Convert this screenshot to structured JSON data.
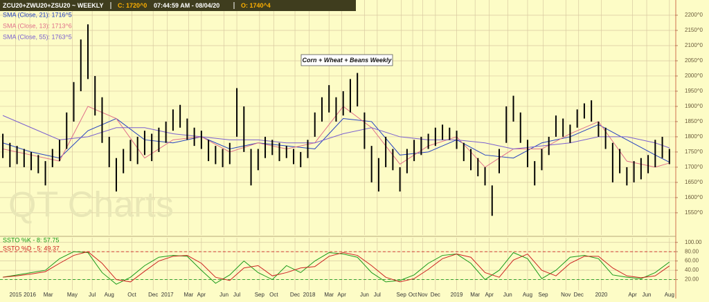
{
  "header": {
    "symbol": "ZCU20+ZWU20+ZSU20 ~ WEEKLY",
    "close": "C: 1720^0",
    "time": "07:44:59 AM - 08/04/20",
    "open": "O: 1740^4"
  },
  "chart_data": [
    {
      "type": "ohlc",
      "annotation": "Corn + Wheat + Beans Weekly",
      "watermark": "QT Charts",
      "grid": true,
      "bar_color": "#000000",
      "xlim": [
        2015.79,
        2020.55
      ],
      "ylim": [
        1477,
        2250
      ],
      "yticks": [
        {
          "value": 1550,
          "label": "1550^0"
        },
        {
          "value": 1600,
          "label": "1600^0"
        },
        {
          "value": 1650,
          "label": "1650^0"
        },
        {
          "value": 1700,
          "label": "1700^0"
        },
        {
          "value": 1750,
          "label": "1750^0"
        },
        {
          "value": 1800,
          "label": "1800^0"
        },
        {
          "value": 1850,
          "label": "1850^0"
        },
        {
          "value": 1900,
          "label": "1900^0"
        },
        {
          "value": 1950,
          "label": "1950^0"
        },
        {
          "value": 2000,
          "label": "2000^0"
        },
        {
          "value": 2050,
          "label": "2050^0"
        },
        {
          "value": 2100,
          "label": "2100^0"
        },
        {
          "value": 2150,
          "label": "2150^0"
        },
        {
          "value": 2200,
          "label": "2200^0"
        }
      ],
      "xticks": [
        {
          "value": 2015.9,
          "label": "2015"
        },
        {
          "value": 2016.0,
          "label": "2016"
        },
        {
          "value": 2016.13,
          "label": "Mar"
        },
        {
          "value": 2016.3,
          "label": "May"
        },
        {
          "value": 2016.44,
          "label": "Jul"
        },
        {
          "value": 2016.56,
          "label": "Aug"
        },
        {
          "value": 2016.72,
          "label": "Oct"
        },
        {
          "value": 2016.87,
          "label": "Dec"
        },
        {
          "value": 2016.97,
          "label": "2017"
        },
        {
          "value": 2017.12,
          "label": "Mar"
        },
        {
          "value": 2017.21,
          "label": "Apr"
        },
        {
          "value": 2017.37,
          "label": "Jun"
        },
        {
          "value": 2017.46,
          "label": "Jul"
        },
        {
          "value": 2017.62,
          "label": "Sep"
        },
        {
          "value": 2017.72,
          "label": "Oct"
        },
        {
          "value": 2017.87,
          "label": "Dec"
        },
        {
          "value": 2017.97,
          "label": "2018"
        },
        {
          "value": 2018.11,
          "label": "Mar"
        },
        {
          "value": 2018.2,
          "label": "Apr"
        },
        {
          "value": 2018.36,
          "label": "Jun"
        },
        {
          "value": 2018.45,
          "label": "Jul"
        },
        {
          "value": 2018.62,
          "label": "Sep"
        },
        {
          "value": 2018.7,
          "label": "Oct"
        },
        {
          "value": 2018.77,
          "label": "Nov"
        },
        {
          "value": 2018.86,
          "label": "Dec"
        },
        {
          "value": 2019.01,
          "label": "2019"
        },
        {
          "value": 2019.14,
          "label": "Mar"
        },
        {
          "value": 2019.24,
          "label": "Apr"
        },
        {
          "value": 2019.37,
          "label": "Jun"
        },
        {
          "value": 2019.51,
          "label": "Aug"
        },
        {
          "value": 2019.62,
          "label": "Sep"
        },
        {
          "value": 2019.78,
          "label": "Nov"
        },
        {
          "value": 2019.87,
          "label": "Dec"
        },
        {
          "value": 2020.03,
          "label": "2020"
        },
        {
          "value": 2020.25,
          "label": "Apr"
        },
        {
          "value": 2020.35,
          "label": "Jun"
        },
        {
          "value": 2020.51,
          "label": "Aug"
        }
      ],
      "bars": {
        "x": [
          2015.81,
          2015.86,
          2015.91,
          2015.96,
          2016.01,
          2016.06,
          2016.11,
          2016.16,
          2016.21,
          2016.26,
          2016.31,
          2016.36,
          2016.41,
          2016.46,
          2016.51,
          2016.56,
          2016.61,
          2016.66,
          2016.71,
          2016.76,
          2016.81,
          2016.86,
          2016.91,
          2016.96,
          2017.01,
          2017.06,
          2017.11,
          2017.16,
          2017.21,
          2017.26,
          2017.31,
          2017.36,
          2017.41,
          2017.46,
          2017.51,
          2017.56,
          2017.61,
          2017.66,
          2017.71,
          2017.76,
          2017.81,
          2017.86,
          2017.91,
          2017.96,
          2018.01,
          2018.06,
          2018.11,
          2018.16,
          2018.21,
          2018.26,
          2018.31,
          2018.36,
          2018.41,
          2018.46,
          2018.51,
          2018.56,
          2018.61,
          2018.66,
          2018.71,
          2018.76,
          2018.81,
          2018.86,
          2018.91,
          2018.96,
          2019.01,
          2019.06,
          2019.11,
          2019.16,
          2019.21,
          2019.26,
          2019.31,
          2019.36,
          2019.41,
          2019.46,
          2019.51,
          2019.56,
          2019.61,
          2019.66,
          2019.71,
          2019.76,
          2019.81,
          2019.86,
          2019.91,
          2019.96,
          2020.01,
          2020.06,
          2020.11,
          2020.16,
          2020.21,
          2020.26,
          2020.31,
          2020.36,
          2020.41,
          2020.46,
          2020.51
        ],
        "low": [
          1730,
          1700,
          1710,
          1700,
          1690,
          1680,
          1640,
          1700,
          1720,
          1760,
          1850,
          1950,
          1990,
          1870,
          1780,
          1700,
          1620,
          1680,
          1720,
          1710,
          1740,
          1720,
          1750,
          1780,
          1820,
          1830,
          1790,
          1770,
          1760,
          1720,
          1710,
          1700,
          1710,
          1800,
          1750,
          1640,
          1690,
          1730,
          1740,
          1720,
          1730,
          1710,
          1700,
          1730,
          1800,
          1850,
          1880,
          1850,
          1870,
          1880,
          1900,
          1760,
          1650,
          1620,
          1700,
          1690,
          1620,
          1680,
          1720,
          1740,
          1760,
          1770,
          1790,
          1790,
          1760,
          1720,
          1690,
          1670,
          1640,
          1540,
          1680,
          1780,
          1850,
          1780,
          1700,
          1640,
          1690,
          1740,
          1800,
          1800,
          1780,
          1830,
          1860,
          1850,
          1800,
          1760,
          1650,
          1680,
          1640,
          1650,
          1660,
          1680,
          1700,
          1730,
          1710
        ],
        "high": [
          1810,
          1780,
          1770,
          1760,
          1750,
          1740,
          1720,
          1760,
          1790,
          1880,
          1980,
          2120,
          2170,
          2000,
          1930,
          1800,
          1730,
          1760,
          1790,
          1800,
          1820,
          1810,
          1830,
          1850,
          1890,
          1905,
          1860,
          1830,
          1820,
          1790,
          1770,
          1760,
          1780,
          1960,
          1900,
          1760,
          1760,
          1800,
          1790,
          1780,
          1770,
          1760,
          1750,
          1790,
          1880,
          1930,
          1970,
          1930,
          1950,
          1990,
          2010,
          1880,
          1770,
          1730,
          1800,
          1760,
          1700,
          1760,
          1790,
          1800,
          1810,
          1830,
          1840,
          1830,
          1820,
          1780,
          1760,
          1730,
          1700,
          1640,
          1760,
          1900,
          1935,
          1880,
          1790,
          1720,
          1760,
          1800,
          1870,
          1860,
          1840,
          1890,
          1910,
          1920,
          1850,
          1830,
          1780,
          1760,
          1700,
          1720,
          1730,
          1740,
          1790,
          1800,
          1760
        ]
      },
      "series": [
        {
          "name": "SMA (Close, 21): 1716^5",
          "color": "#2340c0",
          "x": [
            2015.81,
            2016.01,
            2016.21,
            2016.41,
            2016.61,
            2016.81,
            2017.01,
            2017.21,
            2017.41,
            2017.61,
            2017.81,
            2018.01,
            2018.21,
            2018.41,
            2018.61,
            2018.81,
            2019.01,
            2019.21,
            2019.41,
            2019.61,
            2019.81,
            2020.01,
            2020.21,
            2020.41,
            2020.51
          ],
          "values": [
            1780,
            1750,
            1730,
            1820,
            1860,
            1790,
            1780,
            1800,
            1760,
            1780,
            1770,
            1760,
            1860,
            1850,
            1740,
            1750,
            1790,
            1740,
            1730,
            1780,
            1800,
            1840,
            1790,
            1740,
            1716.5
          ]
        },
        {
          "name": "SMA (Close, 13): 1713^6",
          "color": "#e0708a",
          "x": [
            2015.81,
            2016.01,
            2016.21,
            2016.41,
            2016.61,
            2016.81,
            2017.01,
            2017.21,
            2017.41,
            2017.61,
            2017.81,
            2018.01,
            2018.21,
            2018.41,
            2018.61,
            2018.81,
            2019.01,
            2019.21,
            2019.41,
            2019.61,
            2019.81,
            2020.01,
            2020.21,
            2020.41,
            2020.51
          ],
          "values": [
            1760,
            1740,
            1720,
            1900,
            1860,
            1730,
            1790,
            1800,
            1750,
            1780,
            1760,
            1780,
            1900,
            1830,
            1710,
            1770,
            1800,
            1700,
            1760,
            1760,
            1810,
            1850,
            1720,
            1700,
            1713.6
          ]
        },
        {
          "name": "SMA (Close, 55): 1763^5",
          "color": "#7a5fd0",
          "x": [
            2015.81,
            2016.01,
            2016.21,
            2016.41,
            2016.61,
            2016.81,
            2017.01,
            2017.21,
            2017.41,
            2017.61,
            2017.81,
            2018.01,
            2018.21,
            2018.41,
            2018.61,
            2018.81,
            2019.01,
            2019.21,
            2019.41,
            2019.61,
            2019.81,
            2020.01,
            2020.21,
            2020.41,
            2020.51
          ],
          "values": [
            1870,
            1830,
            1790,
            1800,
            1830,
            1830,
            1810,
            1800,
            1790,
            1790,
            1780,
            1780,
            1810,
            1830,
            1800,
            1790,
            1790,
            1780,
            1760,
            1770,
            1780,
            1800,
            1800,
            1780,
            1763.5
          ]
        }
      ]
    },
    {
      "type": "line",
      "ylim": [
        0,
        110
      ],
      "yticks": [
        {
          "value": 20,
          "label": "20.00"
        },
        {
          "value": 40,
          "label": "40.00"
        },
        {
          "value": 60,
          "label": "60.00"
        },
        {
          "value": 80,
          "label": "80.00"
        },
        {
          "value": 100,
          "label": "100.00"
        }
      ],
      "ref_lines": [
        {
          "value": 80,
          "color": "#cc2222"
        },
        {
          "value": 20,
          "color": "#1a9a1a"
        }
      ],
      "x": [
        2015.81,
        2015.91,
        2016.01,
        2016.11,
        2016.21,
        2016.31,
        2016.41,
        2016.51,
        2016.61,
        2016.71,
        2016.81,
        2016.91,
        2017.01,
        2017.11,
        2017.21,
        2017.31,
        2017.41,
        2017.51,
        2017.61,
        2017.71,
        2017.81,
        2017.91,
        2018.01,
        2018.11,
        2018.21,
        2018.31,
        2018.41,
        2018.51,
        2018.61,
        2018.71,
        2018.81,
        2018.91,
        2019.01,
        2019.11,
        2019.21,
        2019.31,
        2019.41,
        2019.51,
        2019.61,
        2019.71,
        2019.81,
        2019.91,
        2020.01,
        2020.11,
        2020.21,
        2020.31,
        2020.41,
        2020.51
      ],
      "series": [
        {
          "name": "SSTO %K - 8: 57.75",
          "color": "#1a9a1a",
          "values": [
            25,
            30,
            35,
            40,
            65,
            80,
            78,
            35,
            10,
            25,
            50,
            68,
            72,
            70,
            40,
            12,
            30,
            60,
            35,
            20,
            50,
            35,
            60,
            78,
            75,
            68,
            35,
            15,
            18,
            30,
            55,
            72,
            75,
            55,
            20,
            40,
            78,
            65,
            22,
            40,
            68,
            72,
            65,
            30,
            25,
            22,
            35,
            57.75
          ]
        },
        {
          "name": "SSTO %D - 5: 49.37",
          "color": "#cc2222",
          "values": [
            25,
            28,
            32,
            37,
            55,
            72,
            80,
            55,
            20,
            15,
            38,
            60,
            70,
            72,
            55,
            25,
            18,
            45,
            50,
            28,
            35,
            45,
            48,
            70,
            78,
            72,
            50,
            25,
            15,
            22,
            42,
            65,
            75,
            68,
            35,
            25,
            62,
            75,
            40,
            28,
            55,
            70,
            70,
            45,
            28,
            24,
            28,
            49.37
          ]
        }
      ]
    }
  ]
}
